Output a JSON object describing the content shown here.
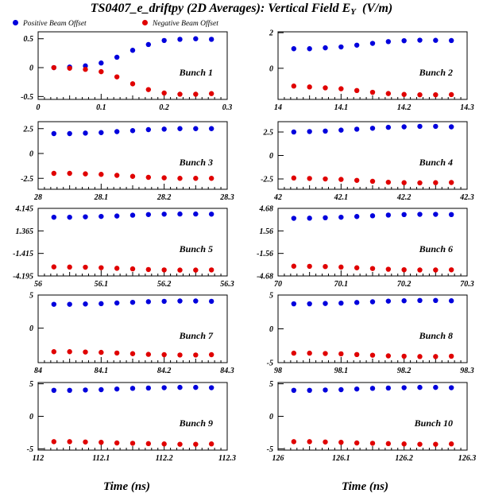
{
  "title": {
    "main": "TS0407_e_driftpy (2D Averages): Vertical Field E",
    "sub": "Y",
    "unit": "(V/m)"
  },
  "legend": {
    "positive": {
      "label": "Positive Beam Offset",
      "color": "#0000dd"
    },
    "negative": {
      "label": "Negative Beam Offset",
      "color": "#e00000"
    }
  },
  "xlabel_left": "Time (ns)",
  "xlabel_right": "Time (ns)",
  "chart_data": [
    {
      "type": "scatter",
      "panel_label": "Bunch 1",
      "xlim": [
        0,
        0.3
      ],
      "xticks": [
        0,
        0.1,
        0.2,
        0.3
      ],
      "xtick_labels": [
        "0",
        "0.1",
        "0.2",
        "0.3"
      ],
      "ylim": [
        -0.55,
        0.62
      ],
      "yticks": [
        0.5,
        0,
        -0.5
      ],
      "ytick_labels": [
        "0.5",
        "0",
        "-0.5"
      ],
      "x": [
        0.025,
        0.05,
        0.075,
        0.1,
        0.125,
        0.15,
        0.175,
        0.2,
        0.225,
        0.25,
        0.275
      ],
      "series": [
        {
          "name": "Positive Beam Offset",
          "values": [
            0,
            0.01,
            0.03,
            0.08,
            0.18,
            0.3,
            0.4,
            0.47,
            0.49,
            0.5,
            0.49
          ]
        },
        {
          "name": "Negative Beam Offset",
          "values": [
            0,
            -0.01,
            -0.03,
            -0.07,
            -0.16,
            -0.28,
            -0.38,
            -0.44,
            -0.46,
            -0.46,
            -0.45
          ]
        }
      ]
    },
    {
      "type": "scatter",
      "panel_label": "Bunch 2",
      "xlim": [
        14,
        14.3
      ],
      "xticks": [
        14,
        14.1,
        14.2,
        14.3
      ],
      "xtick_labels": [
        "14",
        "14.1",
        "14.2",
        "14.3"
      ],
      "ylim": [
        -1.75,
        2.05
      ],
      "yticks": [
        2,
        0
      ],
      "ytick_labels": [
        "2",
        "0"
      ],
      "x": [
        14.025,
        14.05,
        14.075,
        14.1,
        14.125,
        14.15,
        14.175,
        14.2,
        14.225,
        14.25,
        14.275
      ],
      "series": [
        {
          "name": "Positive Beam Offset",
          "values": [
            1.1,
            1.1,
            1.15,
            1.2,
            1.3,
            1.4,
            1.5,
            1.55,
            1.58,
            1.57,
            1.56
          ]
        },
        {
          "name": "Negative Beam Offset",
          "values": [
            -1.0,
            -1.05,
            -1.1,
            -1.15,
            -1.25,
            -1.35,
            -1.42,
            -1.47,
            -1.49,
            -1.49,
            -1.48
          ]
        }
      ]
    },
    {
      "type": "scatter",
      "panel_label": "Bunch 3",
      "xlim": [
        28,
        28.3
      ],
      "xticks": [
        28,
        28.1,
        28.2,
        28.3
      ],
      "xtick_labels": [
        "28",
        "28.1",
        "28.2",
        "28.3"
      ],
      "ylim": [
        -3.6,
        3.2
      ],
      "yticks": [
        2.5,
        0,
        -2.5
      ],
      "ytick_labels": [
        "2.5",
        "0",
        "-2.5"
      ],
      "x": [
        28.025,
        28.05,
        28.075,
        28.1,
        28.125,
        28.15,
        28.175,
        28.2,
        28.225,
        28.25,
        28.275
      ],
      "series": [
        {
          "name": "Positive Beam Offset",
          "values": [
            2.0,
            2.0,
            2.05,
            2.1,
            2.2,
            2.3,
            2.4,
            2.45,
            2.5,
            2.5,
            2.5
          ]
        },
        {
          "name": "Negative Beam Offset",
          "values": [
            -2.0,
            -2.0,
            -2.05,
            -2.1,
            -2.2,
            -2.3,
            -2.4,
            -2.45,
            -2.5,
            -2.5,
            -2.5
          ]
        }
      ]
    },
    {
      "type": "scatter",
      "panel_label": "Bunch 4",
      "xlim": [
        42,
        42.3
      ],
      "xticks": [
        42,
        42.1,
        42.2,
        42.3
      ],
      "xtick_labels": [
        "42",
        "42.1",
        "42.2",
        "42.3"
      ],
      "ylim": [
        -3.6,
        3.6
      ],
      "yticks": [
        2.5,
        0,
        -2.5
      ],
      "ytick_labels": [
        "2.5",
        "0",
        "-2.5"
      ],
      "x": [
        42.025,
        42.05,
        42.075,
        42.1,
        42.125,
        42.15,
        42.175,
        42.2,
        42.225,
        42.25,
        42.275
      ],
      "series": [
        {
          "name": "Positive Beam Offset",
          "values": [
            2.5,
            2.55,
            2.6,
            2.7,
            2.8,
            2.9,
            3.0,
            3.05,
            3.1,
            3.1,
            3.05
          ]
        },
        {
          "name": "Negative Beam Offset",
          "values": [
            -2.4,
            -2.45,
            -2.5,
            -2.55,
            -2.65,
            -2.75,
            -2.85,
            -2.9,
            -2.92,
            -2.9,
            -2.88
          ]
        }
      ]
    },
    {
      "type": "scatter",
      "panel_label": "Bunch 5",
      "xlim": [
        56,
        56.3
      ],
      "xticks": [
        56,
        56.1,
        56.2,
        56.3
      ],
      "xtick_labels": [
        "56",
        "56.1",
        "56.2",
        "56.3"
      ],
      "ylim": [
        -4.195,
        4.145
      ],
      "yticks": [
        4.145,
        1.365,
        -1.415,
        -4.195
      ],
      "ytick_labels": [
        "4.145",
        "1.365",
        "-1.415",
        "-4.195"
      ],
      "x": [
        56.025,
        56.05,
        56.075,
        56.1,
        56.125,
        56.15,
        56.175,
        56.2,
        56.225,
        56.25,
        56.275
      ],
      "series": [
        {
          "name": "Positive Beam Offset",
          "values": [
            3.05,
            3.05,
            3.1,
            3.15,
            3.2,
            3.3,
            3.38,
            3.43,
            3.45,
            3.45,
            3.43
          ]
        },
        {
          "name": "Negative Beam Offset",
          "values": [
            -3.08,
            -3.1,
            -3.12,
            -3.18,
            -3.25,
            -3.32,
            -3.4,
            -3.45,
            -3.47,
            -3.47,
            -3.45
          ]
        }
      ]
    },
    {
      "type": "scatter",
      "panel_label": "Bunch 6",
      "xlim": [
        70,
        70.3
      ],
      "xticks": [
        70,
        70.1,
        70.2,
        70.3
      ],
      "xtick_labels": [
        "70",
        "70.1",
        "70.2",
        "70.3"
      ],
      "ylim": [
        -4.68,
        4.68
      ],
      "yticks": [
        4.68,
        1.56,
        -1.56,
        -4.68
      ],
      "ytick_labels": [
        "4.68",
        "1.56",
        "-1.56",
        "-4.68"
      ],
      "x": [
        70.025,
        70.05,
        70.075,
        70.1,
        70.125,
        70.15,
        70.175,
        70.2,
        70.225,
        70.25,
        70.275
      ],
      "series": [
        {
          "name": "Positive Beam Offset",
          "values": [
            3.3,
            3.32,
            3.38,
            3.45,
            3.55,
            3.65,
            3.75,
            3.82,
            3.85,
            3.85,
            3.82
          ]
        },
        {
          "name": "Negative Beam Offset",
          "values": [
            -3.33,
            -3.35,
            -3.38,
            -3.45,
            -3.55,
            -3.65,
            -3.75,
            -3.82,
            -3.85,
            -3.85,
            -3.83
          ]
        }
      ]
    },
    {
      "type": "scatter",
      "panel_label": "Bunch 7",
      "xlim": [
        84,
        84.3
      ],
      "xticks": [
        84,
        84.1,
        84.2,
        84.3
      ],
      "xtick_labels": [
        "84",
        "84.1",
        "84.2",
        "84.3"
      ],
      "ylim": [
        -5.2,
        5.0
      ],
      "yticks": [
        5,
        0
      ],
      "ytick_labels": [
        "5",
        "0"
      ],
      "x": [
        84.025,
        84.05,
        84.075,
        84.1,
        84.125,
        84.15,
        84.175,
        84.2,
        84.225,
        84.25,
        84.275
      ],
      "series": [
        {
          "name": "Positive Beam Offset",
          "values": [
            3.6,
            3.6,
            3.65,
            3.7,
            3.8,
            3.9,
            4.0,
            4.05,
            4.1,
            4.1,
            4.05
          ]
        },
        {
          "name": "Negative Beam Offset",
          "values": [
            -3.55,
            -3.55,
            -3.6,
            -3.65,
            -3.75,
            -3.85,
            -3.95,
            -4.0,
            -4.05,
            -4.05,
            -4.0
          ]
        }
      ]
    },
    {
      "type": "scatter",
      "panel_label": "Bunch 8",
      "xlim": [
        98,
        98.3
      ],
      "xticks": [
        98,
        98.1,
        98.2,
        98.3
      ],
      "xtick_labels": [
        "98",
        "98.1",
        "98.2",
        "98.3"
      ],
      "ylim": [
        -5.0,
        5.0
      ],
      "yticks": [
        5,
        0,
        -5
      ],
      "ytick_labels": [
        "5",
        "0",
        "-5"
      ],
      "x": [
        98.025,
        98.05,
        98.075,
        98.1,
        98.125,
        98.15,
        98.175,
        98.2,
        98.225,
        98.25,
        98.275
      ],
      "series": [
        {
          "name": "Positive Beam Offset",
          "values": [
            3.7,
            3.7,
            3.75,
            3.8,
            3.9,
            4.0,
            4.1,
            4.15,
            4.2,
            4.2,
            4.15
          ]
        },
        {
          "name": "Negative Beam Offset",
          "values": [
            -3.6,
            -3.6,
            -3.65,
            -3.7,
            -3.8,
            -3.9,
            -4.0,
            -4.05,
            -4.1,
            -4.1,
            -4.05
          ]
        }
      ]
    },
    {
      "type": "scatter",
      "panel_label": "Bunch 9",
      "xlim": [
        112,
        112.3
      ],
      "xticks": [
        112,
        112.1,
        112.2,
        112.3
      ],
      "xtick_labels": [
        "112",
        "112.1",
        "112.2",
        "112.3"
      ],
      "ylim": [
        -5.2,
        5.2
      ],
      "yticks": [
        5,
        0,
        -5
      ],
      "ytick_labels": [
        "5",
        "0",
        "-5"
      ],
      "x": [
        112.025,
        112.05,
        112.075,
        112.1,
        112.125,
        112.15,
        112.175,
        112.2,
        112.225,
        112.25,
        112.275
      ],
      "series": [
        {
          "name": "Positive Beam Offset",
          "values": [
            4.0,
            4.0,
            4.05,
            4.1,
            4.2,
            4.3,
            4.35,
            4.4,
            4.45,
            4.45,
            4.4
          ]
        },
        {
          "name": "Negative Beam Offset",
          "values": [
            -3.9,
            -3.9,
            -3.95,
            -4.0,
            -4.1,
            -4.15,
            -4.2,
            -4.25,
            -4.3,
            -4.3,
            -4.25
          ]
        }
      ]
    },
    {
      "type": "scatter",
      "panel_label": "Bunch 10",
      "xlim": [
        126,
        126.3
      ],
      "xticks": [
        126,
        126.1,
        126.2,
        126.3
      ],
      "xtick_labels": [
        "126",
        "126.1",
        "126.2",
        "126.3"
      ],
      "ylim": [
        -5.2,
        5.2
      ],
      "yticks": [
        5,
        0,
        -5
      ],
      "ytick_labels": [
        "5",
        "0",
        "-5"
      ],
      "x": [
        126.025,
        126.05,
        126.075,
        126.1,
        126.125,
        126.15,
        126.175,
        126.2,
        126.225,
        126.25,
        126.275
      ],
      "series": [
        {
          "name": "Positive Beam Offset",
          "values": [
            4.0,
            4.0,
            4.05,
            4.1,
            4.2,
            4.3,
            4.35,
            4.4,
            4.45,
            4.45,
            4.4
          ]
        },
        {
          "name": "Negative Beam Offset",
          "values": [
            -3.9,
            -3.9,
            -3.95,
            -4.0,
            -4.1,
            -4.15,
            -4.2,
            -4.25,
            -4.3,
            -4.3,
            -4.25
          ]
        }
      ]
    }
  ]
}
